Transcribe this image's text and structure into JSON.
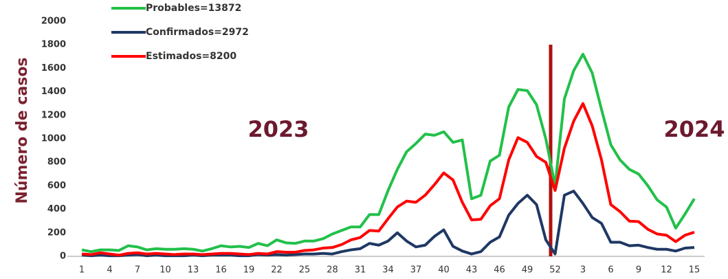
{
  "chart_data": {
    "type": "line",
    "y_label": "Número de casos",
    "annotations": [
      "2023",
      "2024"
    ],
    "categories": [
      1,
      null,
      null,
      4,
      null,
      null,
      7,
      null,
      null,
      10,
      null,
      null,
      13,
      null,
      null,
      16,
      null,
      null,
      19,
      null,
      null,
      22,
      null,
      null,
      25,
      null,
      null,
      28,
      null,
      null,
      31,
      null,
      null,
      34,
      null,
      null,
      37,
      null,
      null,
      40,
      null,
      null,
      43,
      null,
      null,
      46,
      null,
      null,
      49,
      null,
      null,
      52,
      null,
      null,
      3,
      null,
      null,
      6,
      null,
      null,
      9,
      null,
      null,
      12,
      null,
      null,
      15
    ],
    "series": [
      {
        "name": "Probables=13872",
        "color": "#22c04a",
        "values": [
          55,
          40,
          55,
          55,
          50,
          90,
          80,
          55,
          65,
          60,
          60,
          65,
          60,
          45,
          65,
          90,
          80,
          85,
          75,
          110,
          90,
          140,
          115,
          110,
          130,
          130,
          150,
          190,
          220,
          250,
          250,
          355,
          355,
          560,
          740,
          890,
          960,
          1040,
          1030,
          1060,
          970,
          990,
          490,
          520,
          810,
          860,
          1270,
          1420,
          1410,
          1290,
          1000,
          600,
          1340,
          1580,
          1720,
          1560,
          1250,
          950,
          820,
          740,
          700,
          600,
          480,
          420,
          240,
          360,
          490
        ]
      },
      {
        "name": "Confirmados=2972",
        "color": "#1f3864",
        "values": [
          10,
          5,
          10,
          5,
          5,
          10,
          15,
          5,
          10,
          5,
          5,
          5,
          10,
          5,
          10,
          10,
          10,
          5,
          5,
          15,
          10,
          15,
          10,
          15,
          20,
          20,
          25,
          20,
          40,
          55,
          65,
          110,
          95,
          130,
          200,
          130,
          80,
          95,
          170,
          225,
          85,
          45,
          20,
          40,
          120,
          165,
          350,
          450,
          520,
          440,
          140,
          20,
          520,
          555,
          450,
          330,
          280,
          120,
          120,
          90,
          95,
          75,
          60,
          60,
          45,
          70,
          75
        ]
      },
      {
        "name": "Estimados=8200",
        "color": "#ff0000",
        "values": [
          20,
          15,
          30,
          20,
          10,
          25,
          30,
          20,
          25,
          20,
          15,
          20,
          20,
          15,
          20,
          25,
          25,
          20,
          15,
          25,
          20,
          40,
          35,
          35,
          50,
          55,
          70,
          75,
          100,
          140,
          160,
          220,
          215,
          320,
          420,
          470,
          460,
          520,
          610,
          710,
          650,
          460,
          310,
          315,
          430,
          490,
          820,
          1010,
          970,
          850,
          800,
          560,
          920,
          1150,
          1300,
          1110,
          820,
          440,
          380,
          300,
          295,
          230,
          190,
          180,
          125,
          180,
          205
        ]
      }
    ],
    "ylim": [
      0,
      2000
    ],
    "yticks": [
      0,
      200,
      400,
      600,
      800,
      1000,
      1200,
      1400,
      1600,
      1800,
      2000
    ]
  }
}
